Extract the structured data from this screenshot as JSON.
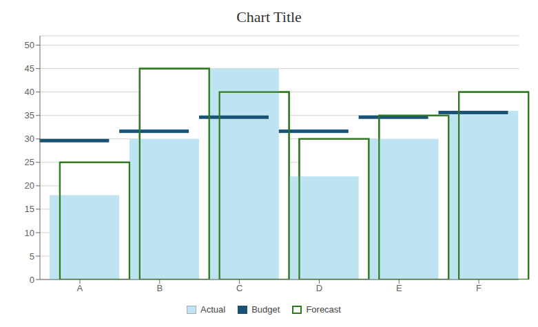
{
  "chart_data": {
    "type": "bar",
    "title": "Chart Title",
    "categories": [
      "A",
      "B",
      "C",
      "D",
      "E",
      "F"
    ],
    "series": [
      {
        "name": "Actual",
        "color": "#bde4f0",
        "values": [
          18,
          30,
          45,
          22,
          30,
          36
        ]
      },
      {
        "name": "Budget",
        "color": "#1a5276",
        "values": [
          30,
          32,
          35,
          32,
          35,
          36
        ]
      },
      {
        "name": "Forecast",
        "color": "#2d7a1f",
        "values": [
          25,
          45,
          40,
          30,
          35,
          40
        ]
      }
    ],
    "ylim": [
      0,
      52
    ],
    "yticks": [
      0,
      5,
      10,
      15,
      20,
      25,
      30,
      35,
      40,
      45,
      50
    ],
    "grid": true,
    "legend": "bottom"
  }
}
